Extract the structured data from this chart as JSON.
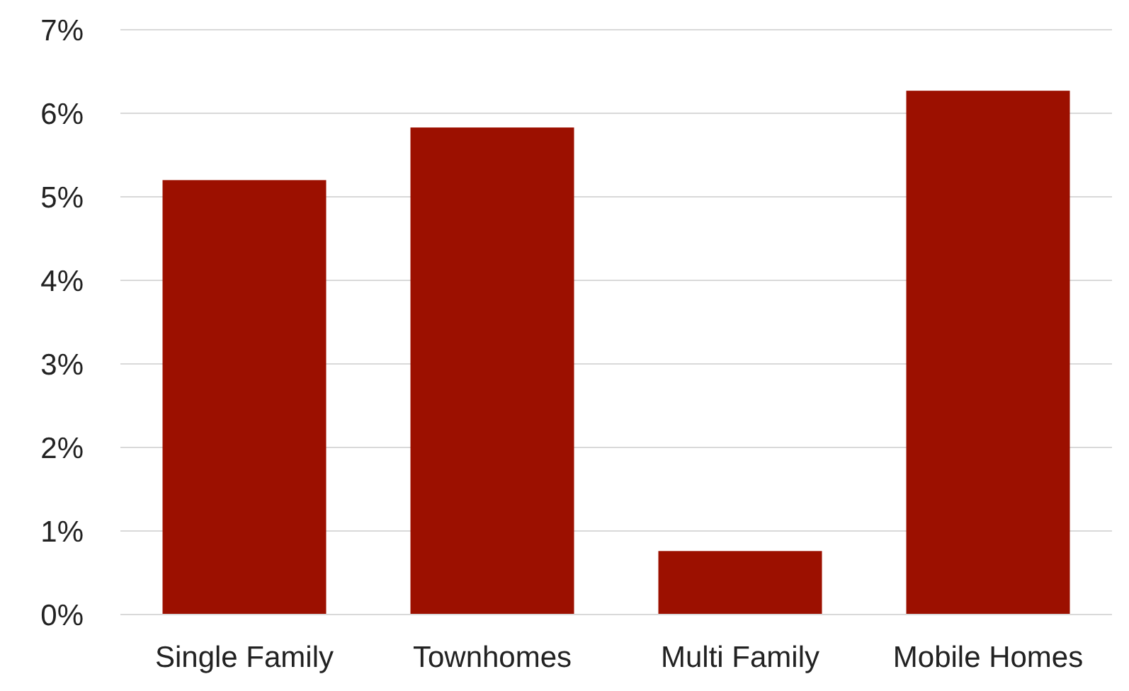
{
  "chart_data": {
    "type": "bar",
    "categories": [
      "Single Family",
      "Townhomes",
      "Multi Family",
      "Mobile Homes"
    ],
    "values": [
      5.2,
      5.83,
      0.76,
      6.27
    ],
    "color": "#9c1000",
    "ylim": [
      0,
      7
    ],
    "yticks": [
      {
        "value": 0,
        "label": "0%"
      },
      {
        "value": 1,
        "label": "1%"
      },
      {
        "value": 2,
        "label": "2%"
      },
      {
        "value": 3,
        "label": "3%"
      },
      {
        "value": 4,
        "label": "4%"
      },
      {
        "value": 5,
        "label": "5%"
      },
      {
        "value": 6,
        "label": "6%"
      },
      {
        "value": 7,
        "label": "7%"
      }
    ],
    "grid": "y"
  }
}
